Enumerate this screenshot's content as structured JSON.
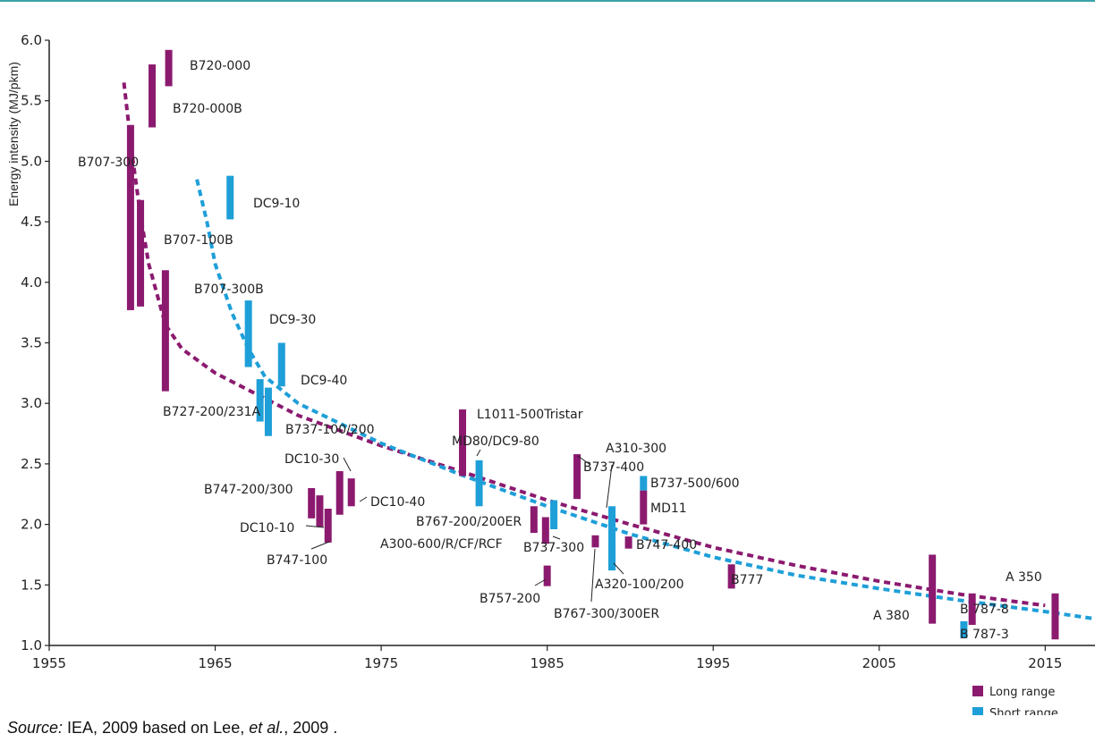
{
  "chart_data": {
    "type": "scatter",
    "ylabel": "Energy intensity (MJ/pkm)",
    "xlim": [
      1955,
      2018
    ],
    "ylim": [
      1.0,
      6.0
    ],
    "x_ticks": [
      "1955",
      "1965",
      "1975",
      "1985",
      "1995",
      "2005",
      "2015"
    ],
    "y_ticks": [
      "1.0",
      "1.5",
      "2.0",
      "2.5",
      "3.0",
      "3.5",
      "4.0",
      "4.5",
      "5.0",
      "5.5",
      "6.0"
    ],
    "colors": {
      "long": "#8b1a6f",
      "short": "#1e9fd8"
    },
    "legend": {
      "placement": "bottom-right",
      "entries": [
        {
          "series": "long",
          "label": "Long range"
        },
        {
          "series": "short",
          "label": "Short range"
        }
      ]
    },
    "aircraft": [
      {
        "label": "B720-000",
        "series": "long",
        "year": 1962.2,
        "low": 5.62,
        "high": 5.92
      },
      {
        "label": "B720-000B",
        "series": "long",
        "year": 1961.2,
        "low": 5.28,
        "high": 5.8
      },
      {
        "label": "B707-300",
        "series": "long",
        "year": 1959.9,
        "low": 3.77,
        "high": 5.3
      },
      {
        "label": "B707-100B",
        "series": "long",
        "year": 1960.5,
        "low": 3.8,
        "high": 4.68
      },
      {
        "label": "B707-300B",
        "series": "long",
        "year": 1962.0,
        "low": 3.1,
        "high": 4.1
      },
      {
        "label": "DC9-10",
        "series": "short",
        "year": 1965.9,
        "low": 4.52,
        "high": 4.88
      },
      {
        "label": "DC9-30",
        "series": "short",
        "year": 1967.0,
        "low": 3.3,
        "high": 3.85
      },
      {
        "label": "DC9-40",
        "series": "short",
        "year": 1969.0,
        "low": 3.14,
        "high": 3.5
      },
      {
        "label": "B727-200/231A",
        "series": "short",
        "year": 1967.7,
        "low": 2.85,
        "high": 3.2
      },
      {
        "label": "B737-100/200",
        "series": "short",
        "year": 1968.2,
        "low": 2.73,
        "high": 3.13
      },
      {
        "label": "B747-200/300",
        "series": "long",
        "year": 1970.8,
        "low": 2.05,
        "high": 2.3
      },
      {
        "label": "DC10-10",
        "series": "long",
        "year": 1971.3,
        "low": 1.98,
        "high": 2.24
      },
      {
        "label": "B747-100",
        "series": "long",
        "year": 1971.8,
        "low": 1.85,
        "high": 2.13
      },
      {
        "label": "DC10-30",
        "series": "long",
        "year": 1972.5,
        "low": 2.08,
        "high": 2.44
      },
      {
        "label": "DC10-40",
        "series": "long",
        "year": 1973.2,
        "low": 2.15,
        "high": 2.38
      },
      {
        "label": "L1011-500Tristar",
        "series": "long",
        "year": 1979.9,
        "low": 2.4,
        "high": 2.95
      },
      {
        "label": "MD80/DC9-80",
        "series": "short",
        "year": 1980.9,
        "low": 2.15,
        "high": 2.53
      },
      {
        "label": "B767-200/200ER",
        "series": "long",
        "year": 1984.2,
        "low": 1.93,
        "high": 2.15
      },
      {
        "label": "A300-600/R/CF/RCF",
        "series": "long",
        "year": 1984.9,
        "low": 1.84,
        "high": 2.06
      },
      {
        "label": "B737-300",
        "series": "short",
        "year": 1985.4,
        "low": 1.96,
        "high": 2.2
      },
      {
        "label": "B757-200",
        "series": "long",
        "year": 1985.0,
        "low": 1.49,
        "high": 1.66
      },
      {
        "label": "B767-300/300ER",
        "series": "long",
        "year": 1987.9,
        "low": 1.81,
        "high": 1.91
      },
      {
        "label": "A310-300",
        "series": "long",
        "year": 1986.8,
        "low": 2.21,
        "high": 2.58
      },
      {
        "label": "B737-400",
        "series": "short",
        "year": 1988.9,
        "low": 1.62,
        "high": 2.15
      },
      {
        "label": "A320-100/200",
        "series": "short",
        "year": 1988.9,
        "low": 1.62,
        "high": 1.83
      },
      {
        "label": "B747-400",
        "series": "long",
        "year": 1989.9,
        "low": 1.8,
        "high": 1.9
      },
      {
        "label": "B737-500/600",
        "series": "short",
        "year": 1990.8,
        "low": 2.28,
        "high": 2.4
      },
      {
        "label": "MD11",
        "series": "long",
        "year": 1990.8,
        "low": 2.0,
        "high": 2.28
      },
      {
        "label": "B777",
        "series": "long",
        "year": 1996.1,
        "low": 1.47,
        "high": 1.67
      },
      {
        "label": "A 380",
        "series": "long",
        "year": 2008.2,
        "low": 1.18,
        "high": 1.75
      },
      {
        "label": "B 787-8",
        "series": "long",
        "year": 2010.6,
        "low": 1.17,
        "high": 1.43
      },
      {
        "label": "B 787-3",
        "series": "short",
        "year": 2010.1,
        "low": 1.06,
        "high": 1.2
      },
      {
        "label": "A 350",
        "series": "long",
        "year": 2015.6,
        "low": 1.05,
        "high": 1.43
      }
    ],
    "trend_lines": [
      {
        "series": "long",
        "points": [
          [
            1959.5,
            5.65
          ],
          [
            1960.0,
            5.05
          ],
          [
            1960.5,
            4.55
          ],
          [
            1961.0,
            4.15
          ],
          [
            1962.0,
            3.65
          ],
          [
            1963.0,
            3.45
          ],
          [
            1965.0,
            3.25
          ],
          [
            1970.0,
            2.9
          ],
          [
            1975.0,
            2.65
          ],
          [
            1980.0,
            2.43
          ],
          [
            1985.0,
            2.2
          ],
          [
            1990.0,
            2.0
          ],
          [
            1995.0,
            1.81
          ],
          [
            2000.0,
            1.66
          ],
          [
            2005.0,
            1.53
          ],
          [
            2010.0,
            1.42
          ],
          [
            2015.0,
            1.33
          ]
        ]
      },
      {
        "series": "short",
        "points": [
          [
            1963.9,
            4.85
          ],
          [
            1964.5,
            4.5
          ],
          [
            1965.0,
            4.15
          ],
          [
            1966.0,
            3.75
          ],
          [
            1967.0,
            3.45
          ],
          [
            1968.0,
            3.22
          ],
          [
            1970.0,
            3.0
          ],
          [
            1975.0,
            2.67
          ],
          [
            1980.0,
            2.4
          ],
          [
            1985.0,
            2.15
          ],
          [
            1990.0,
            1.92
          ],
          [
            1995.0,
            1.73
          ],
          [
            2000.0,
            1.58
          ],
          [
            2005.0,
            1.47
          ],
          [
            2010.0,
            1.37
          ],
          [
            2015.0,
            1.28
          ],
          [
            2018.0,
            1.22
          ]
        ]
      }
    ]
  },
  "source": {
    "prefix": "Source:",
    "text_a": " IEA, 2009 based on Lee, ",
    "emph": "et al.",
    "text_b": ", 2009 ."
  }
}
